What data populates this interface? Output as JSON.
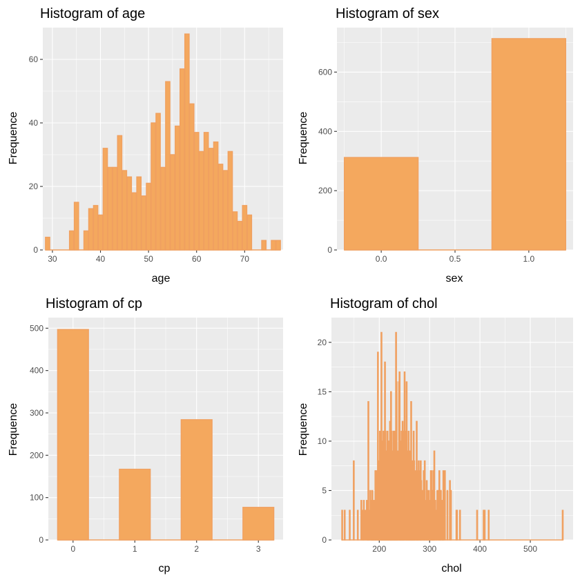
{
  "colors": {
    "bar_fill": "#f4a85e",
    "bar_stroke": "#f0a060",
    "panel_bg": "#ebebeb",
    "grid": "#ffffff"
  },
  "chart_data": [
    {
      "type": "bar",
      "title": "Histogram of age",
      "xlabel": "age",
      "ylabel": "Frequence",
      "xlim": [
        28,
        78
      ],
      "ylim": [
        0,
        70
      ],
      "x_ticks": [
        30,
        40,
        50,
        60,
        70
      ],
      "y_ticks": [
        0,
        20,
        40,
        60
      ],
      "grid": true,
      "bins": [
        {
          "x": 29,
          "count": 4
        },
        {
          "x": 30,
          "count": 0
        },
        {
          "x": 31,
          "count": 0
        },
        {
          "x": 32,
          "count": 0
        },
        {
          "x": 33,
          "count": 0
        },
        {
          "x": 34,
          "count": 6
        },
        {
          "x": 35,
          "count": 15
        },
        {
          "x": 36,
          "count": 0
        },
        {
          "x": 37,
          "count": 6
        },
        {
          "x": 38,
          "count": 13
        },
        {
          "x": 39,
          "count": 14
        },
        {
          "x": 40,
          "count": 11
        },
        {
          "x": 41,
          "count": 32
        },
        {
          "x": 42,
          "count": 26
        },
        {
          "x": 43,
          "count": 26
        },
        {
          "x": 44,
          "count": 36
        },
        {
          "x": 45,
          "count": 25
        },
        {
          "x": 46,
          "count": 23
        },
        {
          "x": 47,
          "count": 18
        },
        {
          "x": 48,
          "count": 23
        },
        {
          "x": 49,
          "count": 17
        },
        {
          "x": 50,
          "count": 21
        },
        {
          "x": 51,
          "count": 40
        },
        {
          "x": 52,
          "count": 43
        },
        {
          "x": 53,
          "count": 26
        },
        {
          "x": 54,
          "count": 53
        },
        {
          "x": 55,
          "count": 30
        },
        {
          "x": 56,
          "count": 39
        },
        {
          "x": 57,
          "count": 57
        },
        {
          "x": 58,
          "count": 68
        },
        {
          "x": 59,
          "count": 46
        },
        {
          "x": 60,
          "count": 37
        },
        {
          "x": 61,
          "count": 31
        },
        {
          "x": 62,
          "count": 37
        },
        {
          "x": 63,
          "count": 32
        },
        {
          "x": 64,
          "count": 34
        },
        {
          "x": 65,
          "count": 27
        },
        {
          "x": 66,
          "count": 25
        },
        {
          "x": 67,
          "count": 31
        },
        {
          "x": 68,
          "count": 12
        },
        {
          "x": 69,
          "count": 9
        },
        {
          "x": 70,
          "count": 14
        },
        {
          "x": 71,
          "count": 11
        },
        {
          "x": 72,
          "count": 0
        },
        {
          "x": 73,
          "count": 0
        },
        {
          "x": 74,
          "count": 3
        },
        {
          "x": 75,
          "count": 0
        },
        {
          "x": 76,
          "count": 3
        },
        {
          "x": 77,
          "count": 3
        }
      ],
      "bin_width": 0.9
    },
    {
      "type": "bar",
      "title": "Histogram of sex",
      "xlabel": "sex",
      "ylabel": "Frequence",
      "xlim": [
        -0.3,
        1.3
      ],
      "ylim": [
        0,
        750
      ],
      "x_ticks": [
        0.0,
        0.5,
        1.0
      ],
      "x_tick_labels": [
        "0.0",
        "0.5",
        "1.0"
      ],
      "y_ticks": [
        0,
        200,
        400,
        600
      ],
      "grid": true,
      "bins": [
        {
          "x": 0,
          "count": 312
        },
        {
          "x": 0.5,
          "count": 0
        },
        {
          "x": 1,
          "count": 713
        }
      ],
      "bin_width": 0.5
    },
    {
      "type": "bar",
      "title": "Histogram of cp",
      "xlabel": "cp",
      "ylabel": "Frequence",
      "xlim": [
        -0.4,
        3.4
      ],
      "ylim": [
        0,
        525
      ],
      "x_ticks": [
        0,
        1,
        2,
        3
      ],
      "y_ticks": [
        0,
        100,
        200,
        300,
        400,
        500
      ],
      "grid": true,
      "bins": [
        {
          "x": 0,
          "count": 497
        },
        {
          "x": 0.5,
          "count": 0
        },
        {
          "x": 1,
          "count": 167
        },
        {
          "x": 1.5,
          "count": 0
        },
        {
          "x": 2,
          "count": 284
        },
        {
          "x": 2.5,
          "count": 0
        },
        {
          "x": 3,
          "count": 77
        }
      ],
      "bin_width": 0.5
    },
    {
      "type": "bar",
      "title": "Histogram of chol",
      "xlabel": "chol",
      "ylabel": "Frequence",
      "xlim": [
        105,
        585
      ],
      "ylim": [
        0,
        22.5
      ],
      "x_ticks": [
        200,
        300,
        400,
        500
      ],
      "y_ticks": [
        0,
        5,
        10,
        15,
        20
      ],
      "grid": true,
      "bins": [
        {
          "x": 126,
          "count": 3
        },
        {
          "x": 131,
          "count": 3
        },
        {
          "x": 141,
          "count": 3
        },
        {
          "x": 149,
          "count": 8
        },
        {
          "x": 157,
          "count": 3
        },
        {
          "x": 164,
          "count": 4
        },
        {
          "x": 167,
          "count": 3
        },
        {
          "x": 169,
          "count": 4
        },
        {
          "x": 172,
          "count": 3
        },
        {
          "x": 175,
          "count": 4
        },
        {
          "x": 177,
          "count": 4
        },
        {
          "x": 178,
          "count": 14
        },
        {
          "x": 180,
          "count": 3
        },
        {
          "x": 182,
          "count": 5
        },
        {
          "x": 184,
          "count": 4
        },
        {
          "x": 185,
          "count": 4
        },
        {
          "x": 186,
          "count": 5
        },
        {
          "x": 187,
          "count": 3
        },
        {
          "x": 188,
          "count": 4
        },
        {
          "x": 189,
          "count": 3
        },
        {
          "x": 191,
          "count": 4
        },
        {
          "x": 192,
          "count": 7
        },
        {
          "x": 193,
          "count": 7
        },
        {
          "x": 194,
          "count": 4
        },
        {
          "x": 196,
          "count": 7
        },
        {
          "x": 197,
          "count": 19
        },
        {
          "x": 198,
          "count": 8
        },
        {
          "x": 199,
          "count": 4
        },
        {
          "x": 200,
          "count": 7
        },
        {
          "x": 201,
          "count": 11
        },
        {
          "x": 203,
          "count": 9
        },
        {
          "x": 204,
          "count": 21
        },
        {
          "x": 205,
          "count": 10
        },
        {
          "x": 206,
          "count": 5
        },
        {
          "x": 207,
          "count": 8
        },
        {
          "x": 208,
          "count": 11
        },
        {
          "x": 209,
          "count": 10
        },
        {
          "x": 210,
          "count": 7
        },
        {
          "x": 211,
          "count": 18
        },
        {
          "x": 212,
          "count": 11
        },
        {
          "x": 213,
          "count": 5
        },
        {
          "x": 214,
          "count": 9
        },
        {
          "x": 215,
          "count": 6
        },
        {
          "x": 216,
          "count": 11
        },
        {
          "x": 217,
          "count": 8
        },
        {
          "x": 218,
          "count": 10
        },
        {
          "x": 219,
          "count": 10
        },
        {
          "x": 220,
          "count": 9
        },
        {
          "x": 221,
          "count": 12
        },
        {
          "x": 222,
          "count": 10
        },
        {
          "x": 223,
          "count": 15
        },
        {
          "x": 224,
          "count": 11
        },
        {
          "x": 225,
          "count": 5
        },
        {
          "x": 226,
          "count": 9
        },
        {
          "x": 227,
          "count": 7
        },
        {
          "x": 228,
          "count": 11
        },
        {
          "x": 229,
          "count": 10
        },
        {
          "x": 230,
          "count": 8
        },
        {
          "x": 231,
          "count": 11
        },
        {
          "x": 232,
          "count": 10
        },
        {
          "x": 233,
          "count": 21
        },
        {
          "x": 234,
          "count": 16
        },
        {
          "x": 235,
          "count": 9
        },
        {
          "x": 236,
          "count": 9
        },
        {
          "x": 237,
          "count": 8
        },
        {
          "x": 239,
          "count": 16
        },
        {
          "x": 240,
          "count": 17
        },
        {
          "x": 241,
          "count": 8
        },
        {
          "x": 242,
          "count": 10
        },
        {
          "x": 243,
          "count": 8
        },
        {
          "x": 244,
          "count": 11
        },
        {
          "x": 245,
          "count": 7
        },
        {
          "x": 246,
          "count": 12
        },
        {
          "x": 247,
          "count": 8
        },
        {
          "x": 248,
          "count": 11
        },
        {
          "x": 249,
          "count": 9
        },
        {
          "x": 250,
          "count": 17
        },
        {
          "x": 252,
          "count": 5
        },
        {
          "x": 253,
          "count": 11
        },
        {
          "x": 254,
          "count": 16
        },
        {
          "x": 255,
          "count": 6
        },
        {
          "x": 256,
          "count": 8
        },
        {
          "x": 257,
          "count": 9
        },
        {
          "x": 258,
          "count": 11
        },
        {
          "x": 259,
          "count": 6
        },
        {
          "x": 260,
          "count": 4
        },
        {
          "x": 261,
          "count": 9
        },
        {
          "x": 262,
          "count": 4
        },
        {
          "x": 263,
          "count": 14
        },
        {
          "x": 264,
          "count": 7
        },
        {
          "x": 265,
          "count": 6
        },
        {
          "x": 266,
          "count": 8
        },
        {
          "x": 267,
          "count": 5
        },
        {
          "x": 268,
          "count": 11
        },
        {
          "x": 269,
          "count": 8
        },
        {
          "x": 270,
          "count": 4
        },
        {
          "x": 271,
          "count": 7
        },
        {
          "x": 273,
          "count": 5
        },
        {
          "x": 274,
          "count": 12
        },
        {
          "x": 275,
          "count": 7
        },
        {
          "x": 276,
          "count": 6
        },
        {
          "x": 277,
          "count": 5
        },
        {
          "x": 278,
          "count": 8
        },
        {
          "x": 280,
          "count": 6
        },
        {
          "x": 281,
          "count": 7
        },
        {
          "x": 282,
          "count": 8
        },
        {
          "x": 283,
          "count": 6
        },
        {
          "x": 284,
          "count": 4
        },
        {
          "x": 286,
          "count": 5
        },
        {
          "x": 288,
          "count": 7
        },
        {
          "x": 289,
          "count": 3
        },
        {
          "x": 290,
          "count": 8
        },
        {
          "x": 293,
          "count": 4
        },
        {
          "x": 294,
          "count": 6
        },
        {
          "x": 295,
          "count": 5
        },
        {
          "x": 298,
          "count": 5
        },
        {
          "x": 299,
          "count": 4
        },
        {
          "x": 300,
          "count": 3
        },
        {
          "x": 302,
          "count": 7
        },
        {
          "x": 303,
          "count": 7
        },
        {
          "x": 304,
          "count": 5
        },
        {
          "x": 305,
          "count": 5
        },
        {
          "x": 306,
          "count": 3
        },
        {
          "x": 307,
          "count": 7
        },
        {
          "x": 308,
          "count": 7
        },
        {
          "x": 309,
          "count": 9
        },
        {
          "x": 311,
          "count": 4
        },
        {
          "x": 313,
          "count": 3
        },
        {
          "x": 315,
          "count": 5
        },
        {
          "x": 318,
          "count": 5
        },
        {
          "x": 319,
          "count": 7
        },
        {
          "x": 321,
          "count": 5
        },
        {
          "x": 322,
          "count": 5
        },
        {
          "x": 325,
          "count": 4
        },
        {
          "x": 326,
          "count": 3
        },
        {
          "x": 327,
          "count": 7
        },
        {
          "x": 330,
          "count": 7
        },
        {
          "x": 335,
          "count": 5
        },
        {
          "x": 340,
          "count": 6
        },
        {
          "x": 342,
          "count": 5
        },
        {
          "x": 353,
          "count": 3
        },
        {
          "x": 354,
          "count": 3
        },
        {
          "x": 360,
          "count": 3
        },
        {
          "x": 394,
          "count": 3
        },
        {
          "x": 407,
          "count": 3
        },
        {
          "x": 409,
          "count": 3
        },
        {
          "x": 417,
          "count": 3
        },
        {
          "x": 564,
          "count": 3
        }
      ],
      "bin_width": 0.9
    }
  ]
}
